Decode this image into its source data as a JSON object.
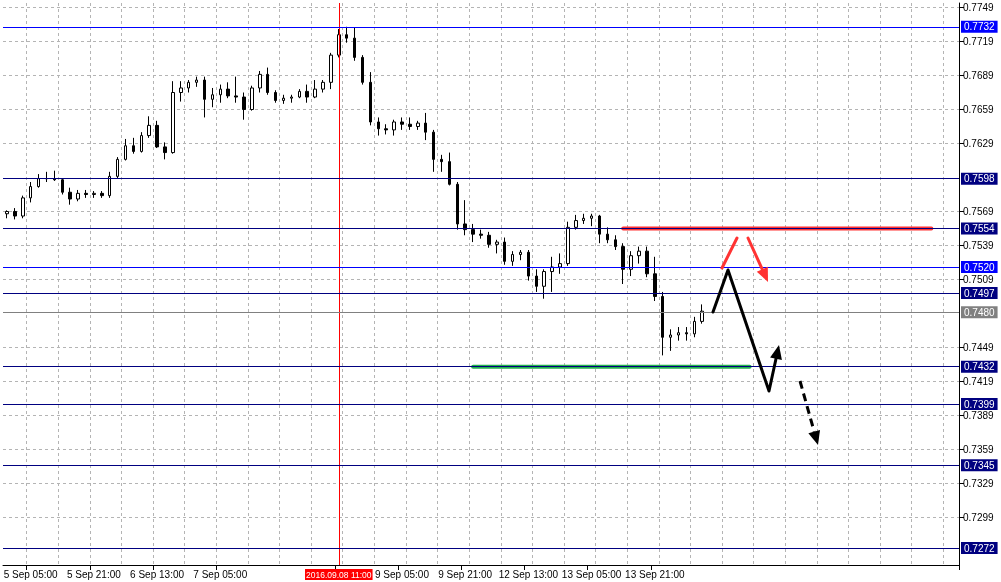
{
  "chart_data": {
    "type": "candlestick",
    "categories": [
      null,
      null,
      null,
      "5 Sep 05:00",
      null,
      null,
      null,
      null,
      null,
      null,
      null,
      "5 Sep 21:00",
      null,
      null,
      null,
      null,
      null,
      null,
      null,
      "6 Sep 13:00",
      null,
      null,
      null,
      null,
      null,
      null,
      null,
      "7 Sep 05:00",
      null,
      null,
      null,
      null,
      null,
      null,
      null,
      null,
      null,
      null,
      null,
      null,
      null,
      null,
      "2016.09.08 11:00",
      null,
      null,
      null,
      null,
      null,
      null,
      null,
      "9 Sep 05:00",
      null,
      null,
      null,
      null,
      null,
      null,
      null,
      "9 Sep 21:00",
      null,
      null,
      null,
      null,
      null,
      null,
      null,
      "12 Sep 13:00",
      null,
      null,
      null,
      null,
      null,
      null,
      null,
      "13 Sep 05:00",
      null,
      null,
      null,
      null,
      null,
      null,
      null,
      "13 Sep 21:00",
      null,
      null,
      null,
      null,
      null,
      null,
      null,
      null,
      null,
      null,
      null,
      null,
      null,
      null,
      null,
      null,
      null,
      null,
      null,
      null,
      null,
      null,
      null,
      null,
      null,
      null,
      null,
      null,
      null,
      null,
      null,
      null,
      null,
      null,
      null,
      null,
      null,
      null
    ],
    "series": [
      {
        "type": "candlestick",
        "color": "#000000",
        "ohlc": [
          [
            0.7567,
            0.757,
            0.7563,
            0.7569
          ],
          [
            0.7569,
            0.7572,
            0.7562,
            0.7565
          ],
          [
            0.7565,
            0.7583,
            0.7563,
            0.7581
          ],
          [
            0.7581,
            0.7595,
            0.7577,
            0.7591
          ],
          [
            0.7591,
            0.7602,
            0.759,
            0.7598
          ],
          [
            0.7598,
            0.7604,
            0.7595,
            0.7598
          ],
          [
            0.7598,
            0.7605,
            0.7596,
            0.7597
          ],
          [
            0.7597,
            0.7598,
            0.7584,
            0.7586
          ],
          [
            0.7586,
            0.759,
            0.7575,
            0.758
          ],
          [
            0.758,
            0.7588,
            0.7578,
            0.7585
          ],
          [
            0.7585,
            0.7588,
            0.7581,
            0.7584
          ],
          [
            0.7584,
            0.7587,
            0.7581,
            0.7585
          ],
          [
            0.7585,
            0.7587,
            0.7581,
            0.7583
          ],
          [
            0.7583,
            0.7604,
            0.7581,
            0.76
          ],
          [
            0.76,
            0.7617,
            0.7598,
            0.7615
          ],
          [
            0.7615,
            0.7633,
            0.7614,
            0.7627
          ],
          [
            0.7627,
            0.7634,
            0.762,
            0.7622
          ],
          [
            0.7622,
            0.7639,
            0.7621,
            0.7636
          ],
          [
            0.7636,
            0.7653,
            0.7634,
            0.7645
          ],
          [
            0.7645,
            0.7649,
            0.7625,
            0.7626
          ],
          [
            0.7626,
            0.763,
            0.7615,
            0.7621
          ],
          [
            0.7621,
            0.7684,
            0.762,
            0.7674
          ],
          [
            0.7674,
            0.7684,
            0.7666,
            0.7678
          ],
          [
            0.7678,
            0.7685,
            0.7674,
            0.7683
          ],
          [
            0.7683,
            0.7688,
            0.7679,
            0.7685
          ],
          [
            0.7685,
            0.7688,
            0.7652,
            0.7668
          ],
          [
            0.7668,
            0.7678,
            0.7661,
            0.7672
          ],
          [
            0.7672,
            0.7681,
            0.7665,
            0.7677
          ],
          [
            0.7677,
            0.7683,
            0.7669,
            0.7671
          ],
          [
            0.7671,
            0.7688,
            0.7665,
            0.767
          ],
          [
            0.767,
            0.7674,
            0.765,
            0.7659
          ],
          [
            0.7659,
            0.768,
            0.7658,
            0.7678
          ],
          [
            0.7678,
            0.7693,
            0.7674,
            0.769
          ],
          [
            0.769,
            0.7696,
            0.7672,
            0.7674
          ],
          [
            0.7674,
            0.7676,
            0.7665,
            0.7667
          ],
          [
            0.7667,
            0.7672,
            0.7664,
            0.7669
          ],
          [
            0.7669,
            0.7672,
            0.7665,
            0.767
          ],
          [
            0.767,
            0.7677,
            0.7669,
            0.7675
          ],
          [
            0.7675,
            0.7681,
            0.7665,
            0.767
          ],
          [
            0.767,
            0.7685,
            0.7669,
            0.7677
          ],
          [
            0.7677,
            0.7685,
            0.7674,
            0.7683
          ],
          [
            0.7683,
            0.7709,
            0.7677,
            0.7707
          ],
          [
            0.7707,
            0.773,
            0.7705,
            0.7725
          ],
          [
            0.7725,
            0.7732,
            0.7718,
            0.7722
          ],
          [
            0.7722,
            0.7731,
            0.7702,
            0.7705
          ],
          [
            0.7705,
            0.7707,
            0.7681,
            0.7683
          ],
          [
            0.7683,
            0.7692,
            0.7645,
            0.7648
          ],
          [
            0.7648,
            0.7652,
            0.7636,
            0.7642
          ],
          [
            0.7642,
            0.7646,
            0.7637,
            0.7641
          ],
          [
            0.7641,
            0.765,
            0.7636,
            0.7648
          ],
          [
            0.7648,
            0.7652,
            0.7641,
            0.7646
          ],
          [
            0.7646,
            0.7652,
            0.7641,
            0.7644
          ],
          [
            0.7644,
            0.7649,
            0.7641,
            0.7647
          ],
          [
            0.7647,
            0.7656,
            0.7632,
            0.7639
          ],
          [
            0.7639,
            0.7641,
            0.7604,
            0.7615
          ],
          [
            0.7615,
            0.7619,
            0.7604,
            0.7613
          ],
          [
            0.7613,
            0.7621,
            0.7592,
            0.7593
          ],
          [
            0.7593,
            0.7595,
            0.7553,
            0.7558
          ],
          [
            0.7558,
            0.7579,
            0.7548,
            0.7553
          ],
          [
            0.7553,
            0.7558,
            0.7542,
            0.7549
          ],
          [
            0.7549,
            0.7553,
            0.7545,
            0.7548
          ],
          [
            0.7548,
            0.7551,
            0.7537,
            0.754
          ],
          [
            0.754,
            0.7544,
            0.7532,
            0.7542
          ],
          [
            0.7542,
            0.7546,
            0.7522,
            0.7525
          ],
          [
            0.7525,
            0.7534,
            0.7521,
            0.7531
          ],
          [
            0.7531,
            0.7535,
            0.7526,
            0.7533
          ],
          [
            0.7533,
            0.7535,
            0.7508,
            0.7512
          ],
          [
            0.7512,
            0.7518,
            0.7498,
            0.7503
          ],
          [
            0.7503,
            0.7518,
            0.7492,
            0.7516
          ],
          [
            0.7516,
            0.7529,
            0.7498,
            0.752
          ],
          [
            0.752,
            0.7532,
            0.7514,
            0.7523
          ],
          [
            0.7523,
            0.756,
            0.7521,
            0.7555
          ],
          [
            0.7555,
            0.7566,
            0.7553,
            0.7561
          ],
          [
            0.7561,
            0.7567,
            0.7558,
            0.7563
          ],
          [
            0.7563,
            0.7567,
            0.7556,
            0.7565
          ],
          [
            0.7565,
            0.7566,
            0.7541,
            0.7549
          ],
          [
            0.7549,
            0.7555,
            0.7541,
            0.7544
          ],
          [
            0.7544,
            0.7548,
            0.7535,
            0.7538
          ],
          [
            0.7538,
            0.7541,
            0.7505,
            0.7518
          ],
          [
            0.7518,
            0.7534,
            0.7512,
            0.753
          ],
          [
            0.753,
            0.7538,
            0.7523,
            0.7534
          ],
          [
            0.7534,
            0.7538,
            0.7511,
            0.7514
          ],
          [
            0.7514,
            0.7529,
            0.749,
            0.7494
          ],
          [
            0.7494,
            0.7498,
            0.7442,
            0.7458
          ],
          [
            0.7458,
            0.7465,
            0.7446,
            0.746
          ],
          [
            0.746,
            0.7467,
            0.7455,
            0.7462
          ],
          [
            0.7462,
            0.7467,
            0.7455,
            0.7461
          ],
          [
            0.7461,
            0.7476,
            0.7458,
            0.7472
          ],
          [
            0.7472,
            0.7487,
            0.747,
            0.7481
          ],
          null,
          null,
          null,
          null,
          null,
          null,
          null,
          null,
          null,
          null,
          null,
          null,
          null,
          null,
          null,
          null,
          null,
          null,
          null,
          null,
          null,
          null,
          null,
          null,
          null,
          null,
          null,
          null,
          null,
          null,
          null,
          null
        ]
      },
      {
        "type": "line",
        "color": "#ff3333",
        "values": [
          null,
          null,
          null,
          null,
          null,
          null,
          null,
          null,
          null,
          null,
          null,
          null,
          null,
          null,
          null,
          null,
          null,
          null,
          null,
          null,
          null,
          null,
          null,
          null,
          null,
          null,
          null,
          null,
          null,
          null,
          null,
          null,
          null,
          null,
          null,
          null,
          null,
          null,
          null,
          null,
          null,
          null,
          null,
          null,
          null,
          null,
          null,
          null,
          null,
          null,
          null,
          null,
          null,
          null,
          null,
          null,
          null,
          null,
          null,
          null,
          null,
          null,
          null,
          null,
          null,
          null,
          null,
          null,
          null,
          null,
          null,
          null,
          null,
          null,
          null,
          null,
          null,
          null,
          0.7554,
          0.7554,
          0.7554,
          0.7554,
          0.7554,
          0.7554,
          0.7554,
          0.7554,
          0.7554,
          0.7554,
          0.7554,
          0.7554,
          0.7554,
          0.7554,
          0.7554,
          0.7554,
          0.7554,
          0.7554,
          0.7554,
          0.7554,
          0.7554,
          0.7554,
          0.7554,
          0.7554,
          0.7554,
          0.7554,
          0.7554,
          0.7554,
          0.7554,
          0.7554,
          0.7554,
          0.7554,
          0.7554,
          0.7554,
          0.7554,
          0.7554,
          0.7554,
          0.7554,
          0.7554,
          0.7554,
          null,
          null,
          null
        ]
      },
      {
        "type": "line",
        "color": "#22b14c",
        "values": [
          null,
          null,
          null,
          null,
          null,
          null,
          null,
          null,
          null,
          null,
          null,
          null,
          null,
          null,
          null,
          null,
          null,
          null,
          null,
          null,
          null,
          null,
          null,
          null,
          null,
          null,
          null,
          null,
          null,
          null,
          null,
          null,
          null,
          null,
          null,
          null,
          null,
          null,
          null,
          null,
          null,
          null,
          null,
          null,
          null,
          null,
          null,
          null,
          null,
          null,
          null,
          null,
          null,
          null,
          null,
          null,
          null,
          null,
          null,
          0.7432,
          0.7432,
          0.7432,
          0.7432,
          0.7432,
          0.7432,
          0.7432,
          0.7432,
          0.7432,
          0.7432,
          0.7432,
          0.7432,
          0.7432,
          0.7432,
          0.7432,
          0.7432,
          0.7432,
          0.7432,
          0.7432,
          0.7432,
          0.7432,
          0.7432,
          0.7432,
          0.7432,
          0.7432,
          0.7432,
          0.7432,
          0.7432,
          0.7432,
          0.7432,
          0.7432,
          0.7432,
          0.7432,
          0.7432,
          0.7432,
          0.7432,
          null,
          null,
          null,
          null,
          null,
          null,
          null,
          null,
          null,
          null,
          null,
          null,
          null,
          null,
          null,
          null,
          null,
          null,
          null,
          null,
          null,
          null,
          null,
          null,
          null,
          null
        ]
      }
    ],
    "ylim": [
      0.7257,
      0.7753
    ],
    "yticks": [
      0.7299,
      0.7329,
      0.7359,
      0.7389,
      0.7419,
      0.7449,
      0.7509,
      0.7539,
      0.7569,
      0.7629,
      0.7659,
      0.7689,
      0.7719,
      0.7749
    ],
    "grid": true,
    "ref_lines": [
      {
        "axis": "y",
        "value": 0.7732,
        "label": "0.7732",
        "color": "#0000ff"
      },
      {
        "axis": "y",
        "value": 0.7598,
        "label": "0.7598",
        "color": "#000080"
      },
      {
        "axis": "y",
        "value": 0.7554,
        "label": "0.7554",
        "color": "#000080"
      },
      {
        "axis": "y",
        "value": 0.752,
        "label": "0.7520",
        "color": "#0000ff"
      },
      {
        "axis": "y",
        "value": 0.7497,
        "label": "0.7497",
        "color": "#000080"
      },
      {
        "axis": "y",
        "value": 0.748,
        "label": "0.7480",
        "color": "#808080"
      },
      {
        "axis": "y",
        "value": 0.7432,
        "label": "0.7432",
        "color": "#000080"
      },
      {
        "axis": "y",
        "value": 0.7399,
        "label": "0.7399",
        "color": "#000080"
      },
      {
        "axis": "y",
        "value": 0.7345,
        "label": "0.7345",
        "color": "#000080"
      },
      {
        "axis": "y",
        "value": 0.7272,
        "label": "0.7272",
        "color": "#000080"
      },
      {
        "axis": "x",
        "value": "2016.09.08 11:00",
        "color": "#ff0000"
      }
    ]
  }
}
